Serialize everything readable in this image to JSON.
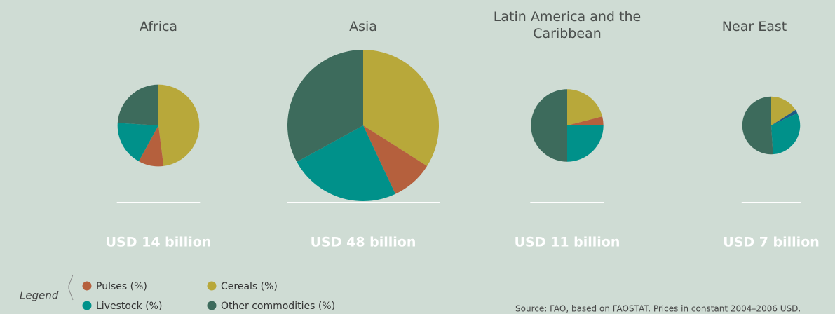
{
  "chart_data": {
    "type": "pie",
    "categories": [
      "Cereals (%)",
      "Pulses (%)",
      null,
      "Livestock (%)",
      "Other commodities (%)"
    ],
    "colors": [
      "#b8a83a",
      "#b5603d",
      "#1f5b86",
      "#00918a",
      "#3d6b5c"
    ],
    "legend_title": "Legend",
    "source": "Source: FAO, based on FAOSTAT. Prices in constant 2004–2006 USD.",
    "pies": [
      {
        "title": "Africa",
        "total": 14,
        "total_label": "USD 14 billion",
        "values": [
          48,
          10,
          0,
          18,
          24
        ]
      },
      {
        "title": "Asia",
        "total": 48,
        "total_label": "USD 48 billion",
        "values": [
          34,
          9,
          0,
          24,
          33
        ]
      },
      {
        "title": "Latin America and the Caribbean",
        "total": 11,
        "total_label": "USD 11 billion",
        "values": [
          21,
          4,
          0,
          25,
          50
        ]
      },
      {
        "title": "Near East",
        "total": 7,
        "total_label": "USD 7 billion",
        "values": [
          16,
          0,
          2,
          31,
          51
        ]
      }
    ]
  }
}
